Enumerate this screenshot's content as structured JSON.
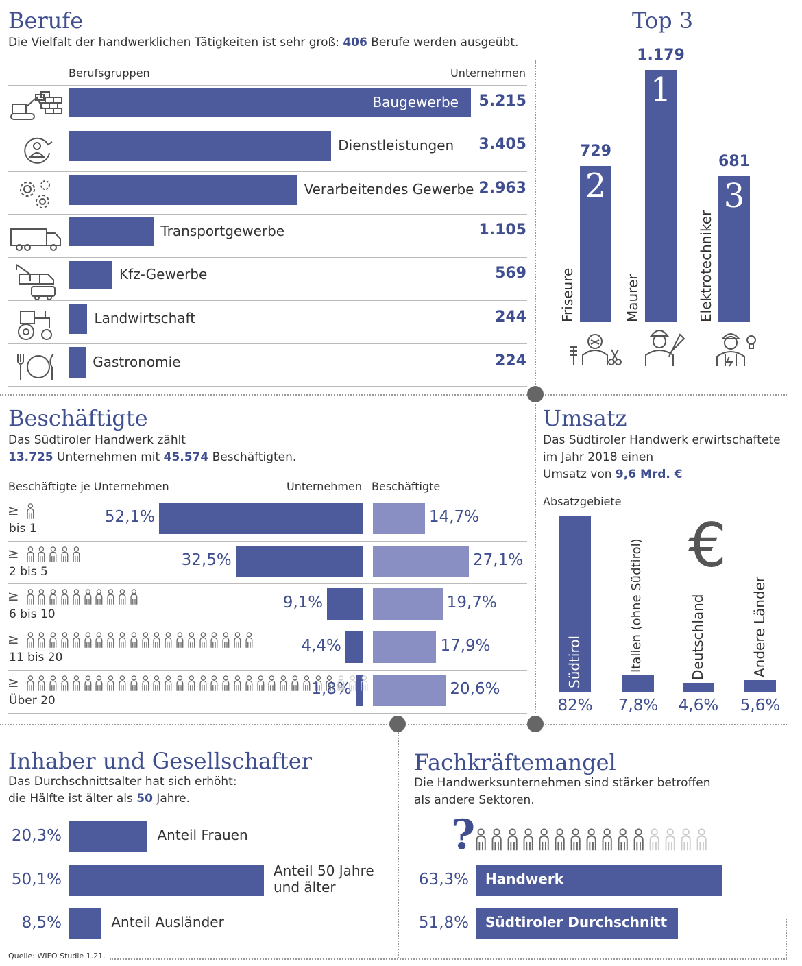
{
  "berufe": {
    "title": "Berufe",
    "subtitle_pre": "Die Vielfalt der handwerklichen Tätigkeiten ist sehr groß: ",
    "subtitle_num": "406",
    "subtitle_post": " Berufe werden ausgeübt.",
    "col_left": "Berufsgruppen",
    "col_right": "Unternehmen"
  },
  "top3": {
    "title": "Top 3"
  },
  "beschaeftigte": {
    "title": "Beschäftigte",
    "line1": "Das Südtiroler Handwerk zählt",
    "num1": "13.725",
    "mid": " Unternehmen mit ",
    "num2": "45.574",
    "post": " Beschäftigten.",
    "col1": "Beschäftigte je Unternehmen",
    "col2": "Unternehmen",
    "col3": "Beschäftigte"
  },
  "umsatz": {
    "title": "Umsatz",
    "line1": "Das  Südtiroler Handwerk erwirtschaftete",
    "line2": "im Jahr 2018 einen",
    "line3_pre": "Umsatz von ",
    "line3_num": "9,6 Mrd. €",
    "absatz": "Absatzgebiete",
    "euro_symbol": "€"
  },
  "inhaber": {
    "title": "Inhaber und Gesellschafter",
    "line1": "Das Durchschnittsalter hat sich erhöht:",
    "line2_pre": "die Hälfte ist älter als ",
    "line2_num": "50",
    "line2_post": " Jahre."
  },
  "fachkraefte": {
    "title": "Fachkräftemangel",
    "line1": "Die Handwerksunternehmen sind stärker betroffen",
    "line2": "als andere Sektoren.",
    "question": "?"
  },
  "source": "Quelle: WIFO Studie 1.21.",
  "icons": [
    "construction-icon",
    "service-icon",
    "gears-icon",
    "truck-icon",
    "tow-truck-icon",
    "tractor-icon",
    "cutlery-icon",
    "hairdresser-icon",
    "mason-icon",
    "electrician-icon",
    "person-icon",
    "euro-icon"
  ],
  "colors": {
    "primary": "#4d5a9c",
    "light": "#8a8fc3",
    "text_accent": "#3f4e8f"
  },
  "chart_data": [
    {
      "type": "bar",
      "orientation": "horizontal",
      "categories": [
        "Baugewerbe",
        "Dienstleistungen",
        "Verarbeitendes Gewerbe",
        "Transportgewerbe",
        "Kfz-Gewerbe",
        "Landwirtschaft",
        "Gastronomie"
      ],
      "values": [
        5215,
        3405,
        2963,
        1105,
        569,
        244,
        224
      ],
      "value_labels": [
        "5.215",
        "3.405",
        "2.963",
        "1.105",
        "569",
        "244",
        "224"
      ],
      "xlabel": "Berufsgruppen",
      "ylabel": "Unternehmen"
    },
    {
      "type": "bar",
      "title": "Top 3",
      "categories": [
        "Friseure",
        "Maurer",
        "Elektrotechniker"
      ],
      "values": [
        729,
        1179,
        681
      ],
      "value_labels": [
        "729",
        "1.179",
        "681"
      ],
      "ranks": [
        "2",
        "1",
        "3"
      ]
    },
    {
      "type": "bar",
      "orientation": "horizontal",
      "categories": [
        "bis 1",
        "2 bis 5",
        "6 bis 10",
        "11 bis 20",
        "Über 20"
      ],
      "person_counts": [
        1,
        5,
        10,
        20,
        30
      ],
      "series": [
        {
          "name": "Unternehmen",
          "values": [
            52.1,
            32.5,
            9.1,
            4.4,
            1.8
          ],
          "labels": [
            "52,1%",
            "32,5%",
            "9,1%",
            "4,4%",
            "1,8%"
          ]
        },
        {
          "name": "Beschäftigte",
          "values": [
            14.7,
            27.1,
            19.7,
            17.9,
            20.6
          ],
          "labels": [
            "14,7%",
            "27,1%",
            "19,7%",
            "17,9%",
            "20,6%"
          ]
        }
      ]
    },
    {
      "type": "bar",
      "categories": [
        "Südtirol",
        "Italien (ohne Südtirol)",
        "Deutschland",
        "Andere Länder"
      ],
      "values": [
        82,
        7.8,
        4.6,
        5.6
      ],
      "value_labels": [
        "82%",
        "7,8%",
        "4,6%",
        "5,6%"
      ]
    },
    {
      "type": "bar",
      "orientation": "horizontal",
      "categories": [
        "Anteil Frauen",
        "Anteil 50 Jahre\nund älter",
        "Anteil Ausländer"
      ],
      "values": [
        20.3,
        50.1,
        8.5
      ],
      "value_labels": [
        "20,3%",
        "50,1%",
        "8,5%"
      ]
    },
    {
      "type": "bar",
      "orientation": "horizontal",
      "categories": [
        "Handwerk",
        "Südtiroler Durchschnitt"
      ],
      "values": [
        63.3,
        51.8
      ],
      "value_labels": [
        "63,3%",
        "51,8%"
      ]
    }
  ]
}
